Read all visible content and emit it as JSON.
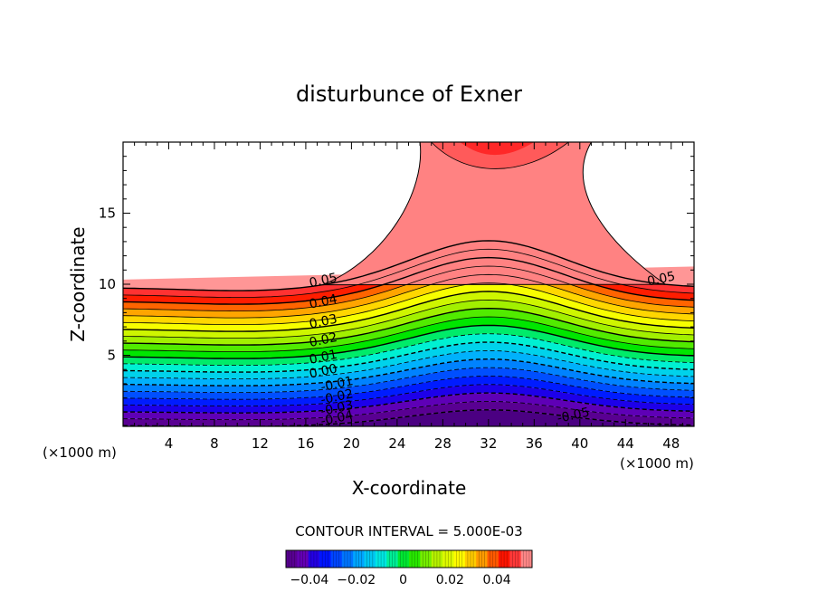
{
  "chart_data": {
    "type": "heatmap",
    "title": "disturbunce of Exner",
    "xlabel": "X-coordinate",
    "ylabel": "Z-coordinate",
    "x_unit_left": "(×1000 m)",
    "x_unit_right": "(×1000 m)",
    "xlim": [
      0,
      50
    ],
    "ylim": [
      0,
      20
    ],
    "x_ticks": [
      4,
      8,
      12,
      16,
      20,
      24,
      28,
      32,
      36,
      40,
      44,
      48
    ],
    "y_ticks": [
      5,
      10,
      15
    ],
    "contour_interval_text": "CONTOUR INTERVAL = 5.000E-03",
    "contour_interval": 0.005,
    "value_range": [
      -0.05,
      0.055
    ],
    "contour_labels": [
      {
        "text": "0.05",
        "x": 17.6,
        "z": 10.0
      },
      {
        "text": "0.04",
        "x": 17.6,
        "z": 8.5
      },
      {
        "text": "0.03",
        "x": 17.6,
        "z": 7.1
      },
      {
        "text": "0.02",
        "x": 17.6,
        "z": 5.8
      },
      {
        "text": "0.01",
        "x": 17.6,
        "z": 4.6
      },
      {
        "text": "0.00",
        "x": 17.6,
        "z": 3.6
      },
      {
        "text": "-0.01",
        "x": 18.8,
        "z": 2.7
      },
      {
        "text": "-0.02",
        "x": 18.8,
        "z": 1.8
      },
      {
        "text": "-0.03",
        "x": 18.8,
        "z": 1.0
      },
      {
        "text": "-0.04",
        "x": 18.8,
        "z": 0.3
      },
      {
        "text": "0.05",
        "x": 47.2,
        "z": 10.1
      },
      {
        "text": "-0.05",
        "x": 39.5,
        "z": 0.5
      }
    ],
    "colorbar": {
      "ticks": [
        -0.04,
        -0.02,
        0,
        0.02,
        0.04
      ],
      "tick_labels": [
        "-0.04",
        "-0.02",
        "0",
        "0.02",
        "0.04"
      ],
      "range": [
        -0.05,
        0.055
      ]
    }
  }
}
